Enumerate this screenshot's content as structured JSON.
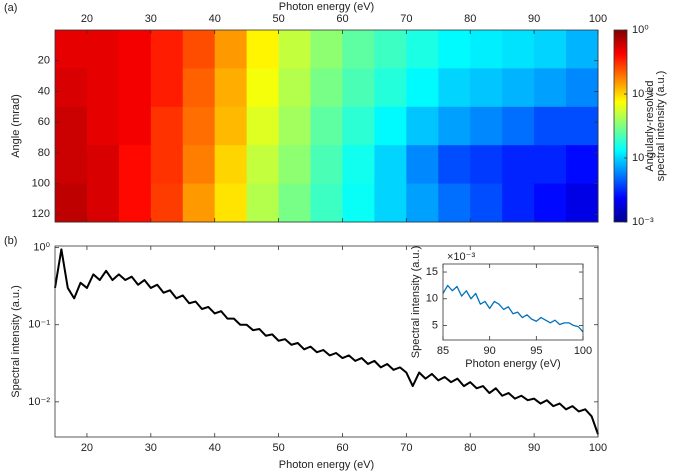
{
  "chart_data": [
    {
      "type": "heatmap",
      "panel_label": "(a)",
      "xlabel": "Photon energy (eV)",
      "ylabel": "Angle (mrad)",
      "colorbar_label": [
        "Angularly-resolved",
        "spectral intensity (a.u.)"
      ],
      "xlim": [
        15,
        100
      ],
      "xticks": [
        20,
        30,
        40,
        50,
        60,
        70,
        80,
        90,
        100
      ],
      "ylim": [
        0,
        125
      ],
      "y_direction": "reverse",
      "yticks": [
        20,
        40,
        60,
        80,
        100,
        120
      ],
      "zlim": [
        0.001,
        1
      ],
      "z_scale": "log",
      "colormap": "jet",
      "zticks": [
        {
          "value": 1,
          "label": "10⁰"
        },
        {
          "value": 0.1,
          "label": "10⁻¹"
        },
        {
          "value": 0.01,
          "label": "10⁻²"
        },
        {
          "value": 0.001,
          "label": "10⁻³"
        }
      ],
      "x": [
        17.5,
        22.5,
        27.5,
        32.5,
        37.5,
        42.5,
        47.5,
        52.5,
        57.5,
        62.5,
        67.5,
        72.5,
        77.5,
        82.5,
        87.5,
        92.5,
        97.5
      ],
      "y": [
        12.5,
        37.5,
        62.5,
        87.5,
        112.5
      ],
      "z": [
        [
          0.5,
          0.5,
          0.45,
          0.35,
          0.25,
          0.15,
          0.08,
          0.05,
          0.035,
          0.025,
          0.02,
          0.016,
          0.013,
          0.012,
          0.011,
          0.01,
          0.008
        ],
        [
          0.55,
          0.5,
          0.45,
          0.35,
          0.22,
          0.13,
          0.07,
          0.045,
          0.03,
          0.022,
          0.017,
          0.013,
          0.01,
          0.009,
          0.008,
          0.007,
          0.006
        ],
        [
          0.6,
          0.5,
          0.45,
          0.3,
          0.2,
          0.12,
          0.06,
          0.04,
          0.025,
          0.018,
          0.013,
          0.009,
          0.007,
          0.006,
          0.005,
          0.004,
          0.004
        ],
        [
          0.6,
          0.55,
          0.4,
          0.3,
          0.18,
          0.1,
          0.05,
          0.035,
          0.022,
          0.015,
          0.01,
          0.006,
          0.004,
          0.0035,
          0.003,
          0.003,
          0.0025
        ],
        [
          0.65,
          0.55,
          0.4,
          0.28,
          0.15,
          0.09,
          0.045,
          0.03,
          0.02,
          0.014,
          0.01,
          0.007,
          0.005,
          0.004,
          0.003,
          0.0025,
          0.002
        ]
      ]
    },
    {
      "type": "line",
      "panel_label": "(b)",
      "xlabel": "Photon energy (eV)",
      "ylabel": "Spectral intensity (a.u.)",
      "xlim": [
        15,
        100
      ],
      "xticks": [
        20,
        30,
        40,
        50,
        60,
        70,
        80,
        90,
        100
      ],
      "ylim": [
        0.0035,
        1.05
      ],
      "y_scale": "log",
      "yticks": [
        {
          "value": 1,
          "label": "10⁰"
        },
        {
          "value": 0.1,
          "label": "10⁻¹"
        },
        {
          "value": 0.01,
          "label": "10⁻²"
        }
      ],
      "color": "#000000",
      "x": [
        15,
        16,
        17,
        18,
        19,
        20,
        21,
        22,
        23,
        24,
        25,
        26,
        27,
        28,
        29,
        30,
        31,
        32,
        33,
        34,
        35,
        36,
        37,
        38,
        39,
        40,
        41,
        42,
        43,
        44,
        45,
        46,
        47,
        48,
        49,
        50,
        51,
        52,
        53,
        54,
        55,
        56,
        57,
        58,
        59,
        60,
        61,
        62,
        63,
        64,
        65,
        66,
        67,
        68,
        69,
        70,
        71,
        72,
        73,
        74,
        75,
        76,
        77,
        78,
        79,
        80,
        81,
        82,
        83,
        84,
        85,
        86,
        87,
        88,
        89,
        90,
        91,
        92,
        93,
        94,
        95,
        96,
        97,
        98,
        99,
        100
      ],
      "values": [
        0.3,
        0.95,
        0.3,
        0.22,
        0.35,
        0.3,
        0.45,
        0.38,
        0.5,
        0.38,
        0.45,
        0.38,
        0.42,
        0.33,
        0.38,
        0.3,
        0.33,
        0.26,
        0.28,
        0.22,
        0.24,
        0.19,
        0.2,
        0.16,
        0.17,
        0.14,
        0.15,
        0.12,
        0.12,
        0.1,
        0.1,
        0.085,
        0.088,
        0.072,
        0.075,
        0.062,
        0.065,
        0.055,
        0.058,
        0.048,
        0.052,
        0.044,
        0.047,
        0.04,
        0.043,
        0.037,
        0.04,
        0.034,
        0.037,
        0.031,
        0.034,
        0.028,
        0.031,
        0.026,
        0.028,
        0.024,
        0.016,
        0.024,
        0.02,
        0.023,
        0.019,
        0.021,
        0.018,
        0.02,
        0.016,
        0.018,
        0.015,
        0.016,
        0.013,
        0.015,
        0.012,
        0.013,
        0.011,
        0.012,
        0.0105,
        0.011,
        0.0095,
        0.0105,
        0.0088,
        0.0095,
        0.008,
        0.0088,
        0.0075,
        0.008,
        0.0065,
        0.0038
      ]
    },
    {
      "type": "line",
      "xlabel": "Photon energy (eV)",
      "ylabel": "Spectral intensity (a.u.)",
      "y_multiplier": "×10⁻³",
      "xlim": [
        85,
        100
      ],
      "xticks": [
        85,
        90,
        95,
        100
      ],
      "ylim": [
        2.3,
        16.5
      ],
      "yticks": [
        5,
        10,
        15
      ],
      "color": "#0072bd",
      "x": [
        85,
        85.5,
        86,
        86.5,
        87,
        87.5,
        88,
        88.5,
        89,
        89.5,
        90,
        90.5,
        91,
        91.5,
        92,
        92.5,
        93,
        93.5,
        94,
        94.5,
        95,
        95.5,
        96,
        96.5,
        97,
        97.5,
        98,
        98.5,
        99,
        99.5,
        100
      ],
      "values": [
        11,
        12.5,
        11.5,
        12.3,
        10.5,
        11.5,
        10,
        11,
        9,
        9.5,
        8.2,
        9.5,
        9,
        8,
        8.5,
        7.2,
        7.5,
        6.5,
        7,
        6.2,
        5.8,
        6.5,
        6,
        5.5,
        6,
        5.2,
        5.5,
        5.5,
        5,
        4.8,
        3.8
      ]
    }
  ]
}
